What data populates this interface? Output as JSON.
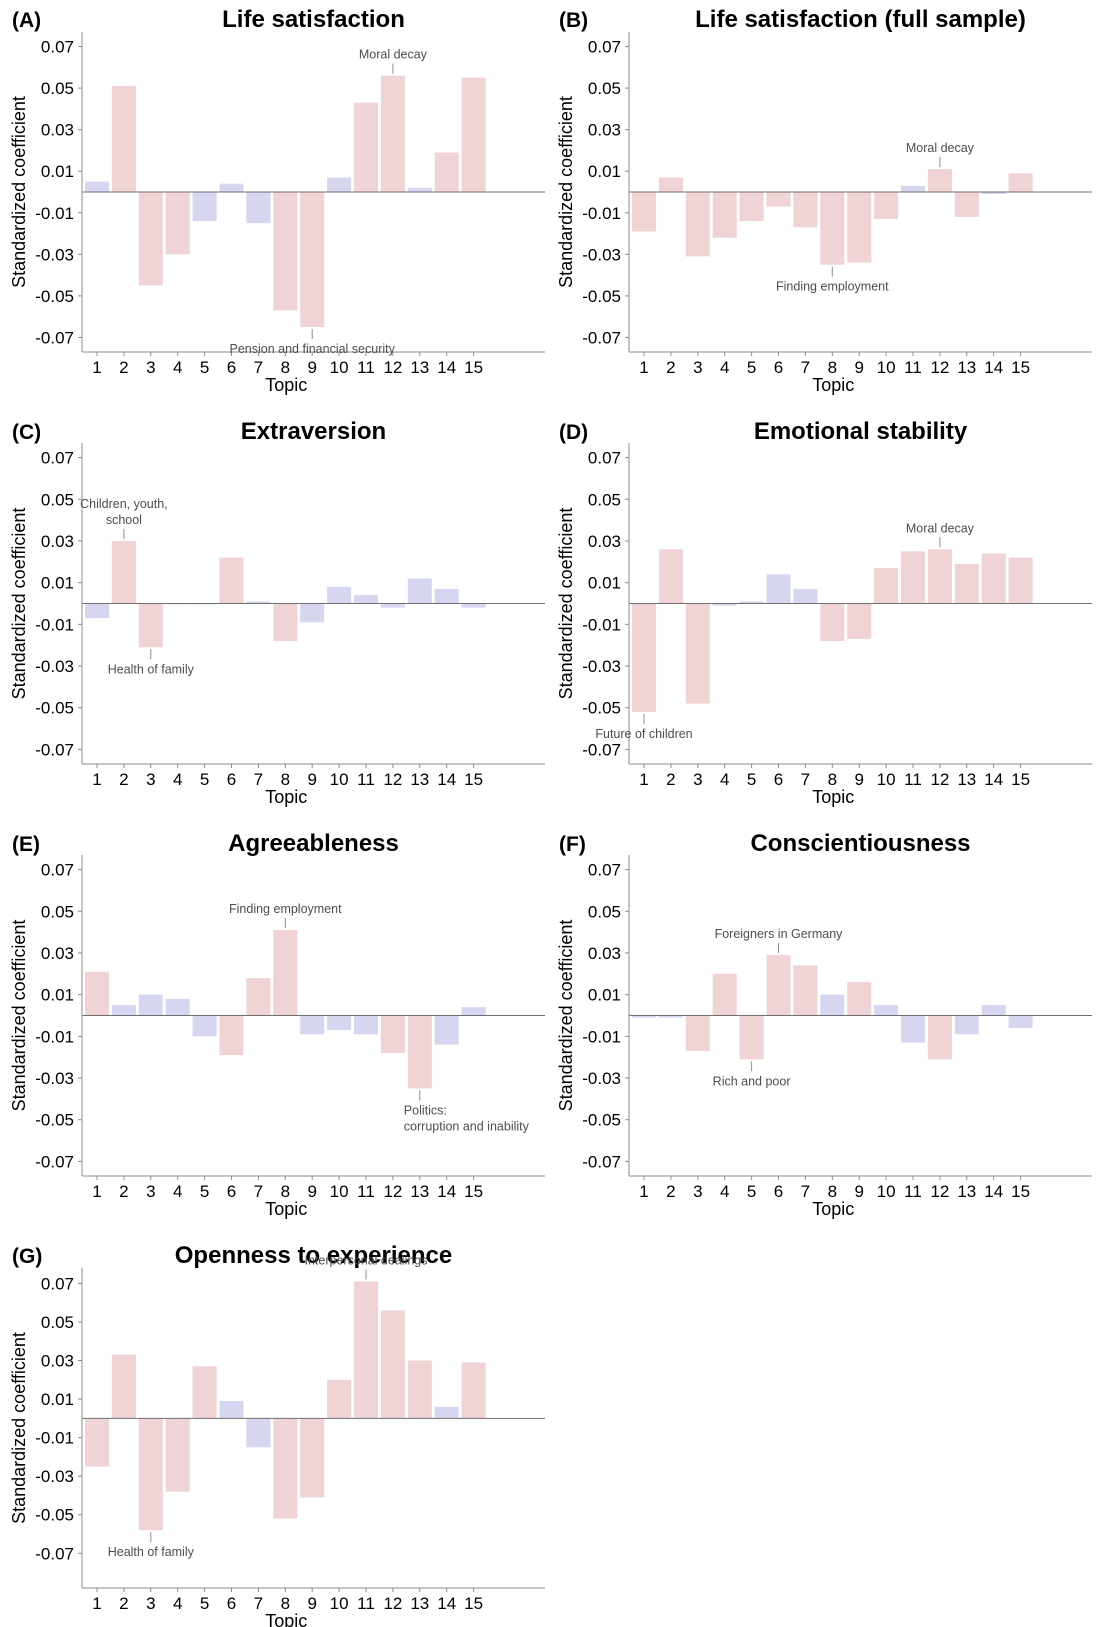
{
  "colors": {
    "significant": "#efd3d5",
    "nonsignificant": "#d6d6f1"
  },
  "chart_data": [
    {
      "type": "bar",
      "letter": "(A)",
      "title": "Life satisfaction",
      "xlabel": "Topic",
      "ylabel": "Standardized coefficient",
      "ylim": [
        -0.077,
        0.077
      ],
      "yticks": [
        "0.07",
        "0.05",
        "0.03",
        "0.01",
        "-0.01",
        "-0.03",
        "-0.05",
        "-0.07"
      ],
      "categories": [
        "1",
        "2",
        "3",
        "4",
        "5",
        "6",
        "7",
        "8",
        "9",
        "10",
        "11",
        "12",
        "13",
        "14",
        "15"
      ],
      "values": [
        0.005,
        0.051,
        -0.045,
        -0.03,
        -0.014,
        0.004,
        -0.015,
        -0.057,
        -0.065,
        0.007,
        0.043,
        0.056,
        0.002,
        0.019,
        0.055
      ],
      "significant": [
        false,
        true,
        true,
        true,
        false,
        false,
        false,
        true,
        true,
        false,
        true,
        true,
        false,
        true,
        true
      ],
      "annotations": [
        {
          "text": [
            "Moral decay"
          ],
          "topic": 12
        },
        {
          "text": [
            "Pension and financial security"
          ],
          "topic": 9
        }
      ]
    },
    {
      "type": "bar",
      "letter": "(B)",
      "title": "Life satisfaction (full sample)",
      "xlabel": "Topic",
      "ylabel": "Standardized coefficient",
      "ylim": [
        -0.077,
        0.077
      ],
      "yticks": [
        "0.07",
        "0.05",
        "0.03",
        "0.01",
        "-0.01",
        "-0.03",
        "-0.05",
        "-0.07"
      ],
      "categories": [
        "1",
        "2",
        "3",
        "4",
        "5",
        "6",
        "7",
        "8",
        "9",
        "10",
        "11",
        "12",
        "13",
        "14",
        "15"
      ],
      "values": [
        -0.019,
        0.007,
        -0.031,
        -0.022,
        -0.014,
        -0.007,
        -0.017,
        -0.035,
        -0.034,
        -0.013,
        0.003,
        0.011,
        -0.012,
        -0.001,
        0.009
      ],
      "significant": [
        true,
        true,
        true,
        true,
        true,
        true,
        true,
        true,
        true,
        true,
        false,
        true,
        true,
        false,
        true
      ],
      "annotations": [
        {
          "text": [
            "Moral decay"
          ],
          "topic": 12
        },
        {
          "text": [
            "Finding employment"
          ],
          "topic": 8
        }
      ]
    },
    {
      "type": "bar",
      "letter": "(C)",
      "title": "Extraversion",
      "xlabel": "Topic",
      "ylabel": "Standardized coefficient",
      "ylim": [
        -0.077,
        0.077
      ],
      "yticks": [
        "0.07",
        "0.05",
        "0.03",
        "0.01",
        "-0.01",
        "-0.03",
        "-0.05",
        "-0.07"
      ],
      "categories": [
        "1",
        "2",
        "3",
        "4",
        "5",
        "6",
        "7",
        "8",
        "9",
        "10",
        "11",
        "12",
        "13",
        "14",
        "15"
      ],
      "values": [
        -0.007,
        0.03,
        -0.021,
        0,
        0,
        0.022,
        0.001,
        -0.018,
        -0.009,
        0.008,
        0.004,
        -0.002,
        0.012,
        0.007,
        -0.002
      ],
      "significant": [
        false,
        true,
        true,
        false,
        false,
        true,
        false,
        true,
        false,
        false,
        false,
        false,
        false,
        false,
        false
      ],
      "annotations": [
        {
          "text": [
            "Children, youth,",
            "school"
          ],
          "topic": 2
        },
        {
          "text": [
            "Health of family"
          ],
          "topic": 3
        }
      ]
    },
    {
      "type": "bar",
      "letter": "(D)",
      "title": "Emotional stability",
      "xlabel": "Topic",
      "ylabel": "Standardized coefficient",
      "ylim": [
        -0.077,
        0.077
      ],
      "yticks": [
        "0.07",
        "0.05",
        "0.03",
        "0.01",
        "-0.01",
        "-0.03",
        "-0.05",
        "-0.07"
      ],
      "categories": [
        "1",
        "2",
        "3",
        "4",
        "5",
        "6",
        "7",
        "8",
        "9",
        "10",
        "11",
        "12",
        "13",
        "14",
        "15"
      ],
      "values": [
        -0.052,
        0.026,
        -0.048,
        -0.001,
        0.001,
        0.014,
        0.007,
        -0.018,
        -0.017,
        0.017,
        0.025,
        0.026,
        0.019,
        0.024,
        0.022
      ],
      "significant": [
        true,
        true,
        true,
        false,
        false,
        false,
        false,
        true,
        true,
        true,
        true,
        true,
        true,
        true,
        true
      ],
      "annotations": [
        {
          "text": [
            "Moral decay"
          ],
          "topic": 12
        },
        {
          "text": [
            "Future of children"
          ],
          "topic": 1
        }
      ]
    },
    {
      "type": "bar",
      "letter": "(E)",
      "title": "Agreeableness",
      "xlabel": "Topic",
      "ylabel": "Standardized coefficient",
      "ylim": [
        -0.077,
        0.077
      ],
      "yticks": [
        "0.07",
        "0.05",
        "0.03",
        "0.01",
        "-0.01",
        "-0.03",
        "-0.05",
        "-0.07"
      ],
      "categories": [
        "1",
        "2",
        "3",
        "4",
        "5",
        "6",
        "7",
        "8",
        "9",
        "10",
        "11",
        "12",
        "13",
        "14",
        "15"
      ],
      "values": [
        0.021,
        0.005,
        0.01,
        0.008,
        -0.01,
        -0.019,
        0.018,
        0.041,
        -0.009,
        -0.007,
        -0.009,
        -0.018,
        -0.035,
        -0.014,
        0.004
      ],
      "significant": [
        true,
        false,
        false,
        false,
        false,
        true,
        true,
        true,
        false,
        false,
        false,
        true,
        true,
        false,
        false
      ],
      "annotations": [
        {
          "text": [
            "Finding employment"
          ],
          "topic": 8
        },
        {
          "text": [
            "Politics:",
            "corruption and inability"
          ],
          "topic": 13
        }
      ]
    },
    {
      "type": "bar",
      "letter": "(F)",
      "title": "Conscientiousness",
      "xlabel": "Topic",
      "ylabel": "Standardized coefficient",
      "ylim": [
        -0.077,
        0.077
      ],
      "yticks": [
        "0.07",
        "0.05",
        "0.03",
        "0.01",
        "-0.01",
        "-0.03",
        "-0.05",
        "-0.07"
      ],
      "categories": [
        "1",
        "2",
        "3",
        "4",
        "5",
        "6",
        "7",
        "8",
        "9",
        "10",
        "11",
        "12",
        "13",
        "14",
        "15"
      ],
      "values": [
        -0.001,
        -0.001,
        -0.017,
        0.02,
        -0.021,
        0.029,
        0.024,
        0.01,
        0.016,
        0.005,
        -0.013,
        -0.021,
        -0.009,
        0.005,
        -0.006
      ],
      "significant": [
        false,
        false,
        true,
        true,
        true,
        true,
        true,
        false,
        true,
        false,
        false,
        true,
        false,
        false,
        false
      ],
      "annotations": [
        {
          "text": [
            "Foreigners in Germany"
          ],
          "topic": 6
        },
        {
          "text": [
            "Rich and poor"
          ],
          "topic": 5
        }
      ]
    },
    {
      "type": "bar",
      "letter": "(G)",
      "title": "Openness to experience",
      "xlabel": "Topic",
      "ylabel": "Standardized coefficient",
      "ylim": [
        -0.088,
        0.078
      ],
      "yticks": [
        "0.07",
        "0.05",
        "0.03",
        "0.01",
        "-0.01",
        "-0.03",
        "-0.05",
        "-0.07"
      ],
      "categories": [
        "1",
        "2",
        "3",
        "4",
        "5",
        "6",
        "7",
        "8",
        "9",
        "10",
        "11",
        "12",
        "13",
        "14",
        "15"
      ],
      "values": [
        -0.025,
        0.033,
        -0.058,
        -0.038,
        0.027,
        0.009,
        -0.015,
        -0.052,
        -0.041,
        0.02,
        0.071,
        0.056,
        0.03,
        0.006,
        0.029
      ],
      "significant": [
        true,
        true,
        true,
        true,
        true,
        false,
        false,
        true,
        true,
        true,
        true,
        true,
        true,
        false,
        true
      ],
      "annotations": [
        {
          "text": [
            "Interpersonal dealings"
          ],
          "topic": 11
        },
        {
          "text": [
            "Health of family"
          ],
          "topic": 3
        }
      ]
    }
  ]
}
